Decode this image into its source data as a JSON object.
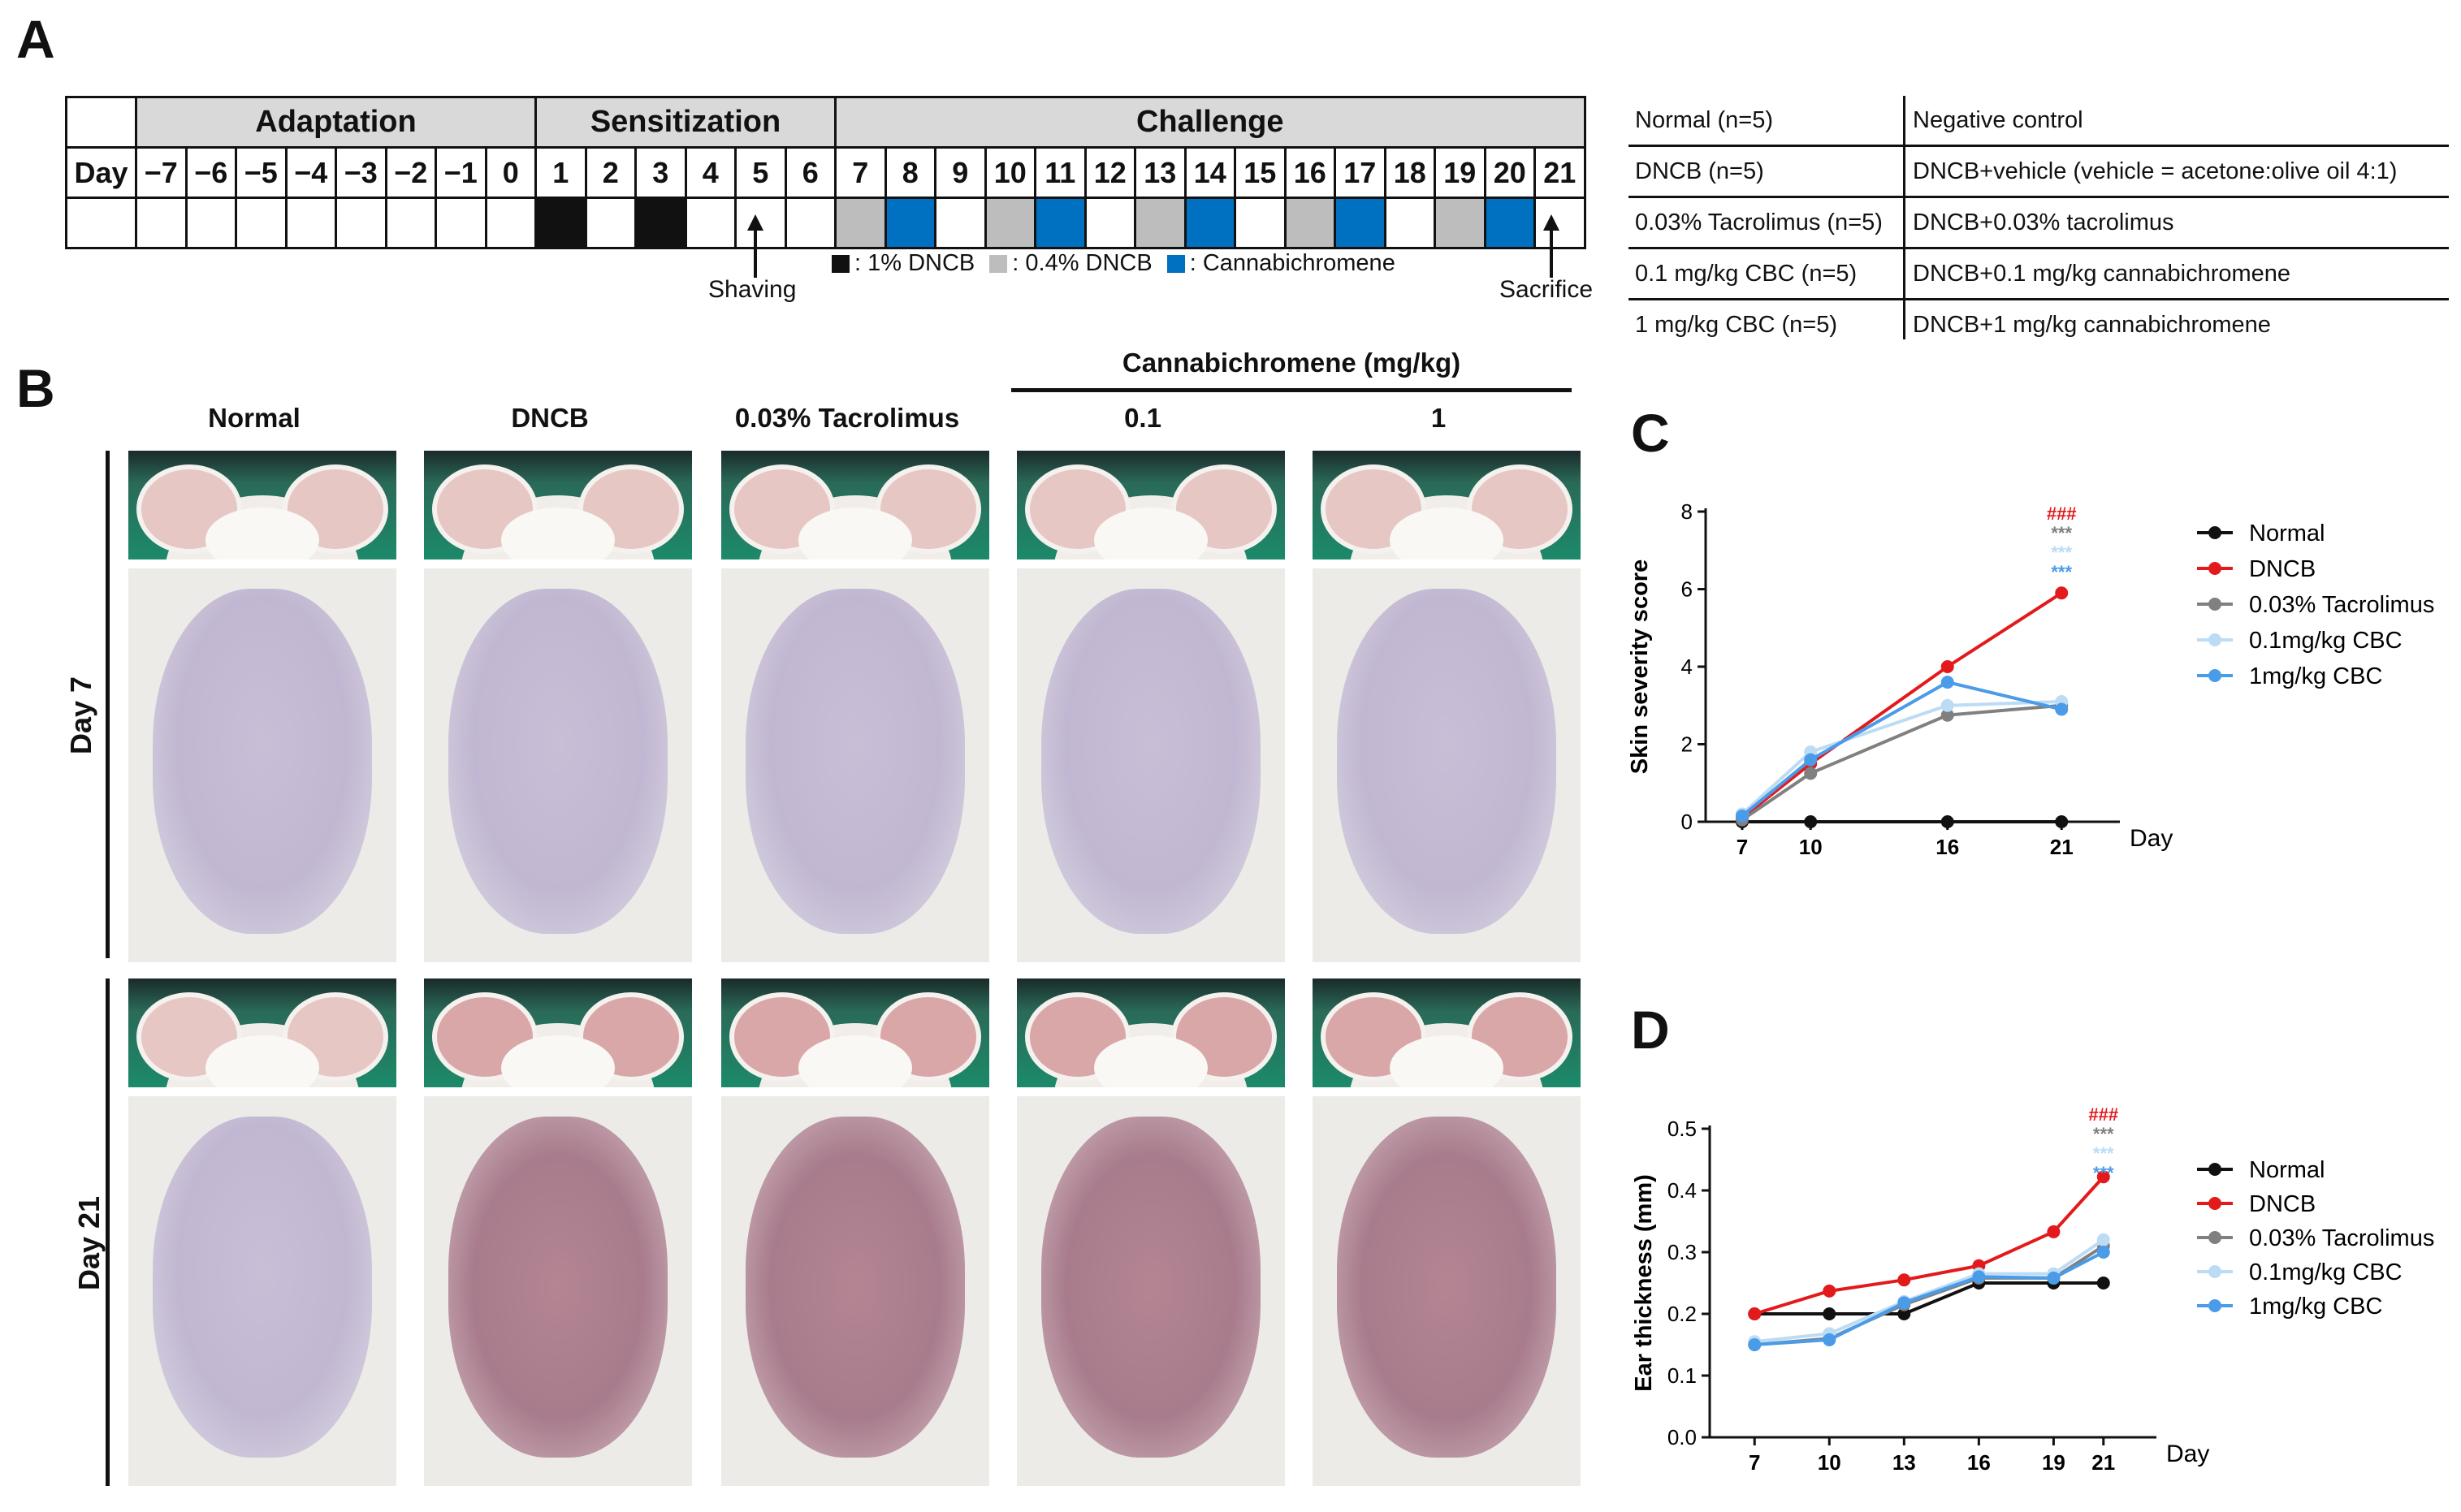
{
  "panels": {
    "a": "A",
    "b": "B",
    "c": "C",
    "d": "D"
  },
  "schedule": {
    "day_label": "Day",
    "phases": [
      "Adaptation",
      "Sensitization",
      "Challenge"
    ],
    "days": [
      "−7",
      "−6",
      "−5",
      "−4",
      "−3",
      "−2",
      "−1",
      "0",
      "1",
      "2",
      "3",
      "4",
      "5",
      "6",
      "7",
      "8",
      "9",
      "10",
      "11",
      "12",
      "13",
      "14",
      "15",
      "16",
      "17",
      "18",
      "19",
      "20",
      "21"
    ],
    "treatments": [
      "none",
      "none",
      "none",
      "none",
      "none",
      "none",
      "none",
      "none",
      "dncb1",
      "none",
      "dncb1",
      "none",
      "none",
      "none",
      "dncb04",
      "cbc",
      "none",
      "dncb04",
      "cbc",
      "none",
      "dncb04",
      "cbc",
      "none",
      "dncb04",
      "cbc",
      "none",
      "dncb04",
      "cbc",
      "none"
    ],
    "shaving": "Shaving",
    "sacrifice": "Sacrifice",
    "legend": [
      {
        "key": "dncb1",
        "label": ": 1% DNCB",
        "color": "#111111"
      },
      {
        "key": "dncb04",
        "label": ": 0.4% DNCB",
        "color": "#bdbdbd"
      },
      {
        "key": "cbc",
        "label": ": Cannabichromene",
        "color": "#0070c0"
      }
    ]
  },
  "groups": [
    {
      "name": "Normal (n=5)",
      "desc": "Negative control"
    },
    {
      "name": "DNCB (n=5)",
      "desc": "DNCB+vehicle (vehicle = acetone:olive oil 4:1)"
    },
    {
      "name": "0.03% Tacrolimus (n=5)",
      "desc": "DNCB+0.03% tacrolimus"
    },
    {
      "name": "0.1 mg/kg CBC (n=5)",
      "desc": "DNCB+0.1 mg/kg cannabichromene"
    },
    {
      "name": "1 mg/kg CBC (n=5)",
      "desc": "DNCB+1 mg/kg cannabichromene"
    }
  ],
  "photos": {
    "cbc_header": "Cannabichromene (mg/kg)",
    "columns": [
      "Normal",
      "DNCB",
      "0.03% Tacrolimus",
      "0.1",
      "1"
    ],
    "rows": [
      "Day 7",
      "Day 21"
    ]
  },
  "chart_data": [
    {
      "type": "line",
      "title": "",
      "xlabel": "Day",
      "ylabel": "Skin severity score",
      "x": [
        7,
        10,
        16,
        21
      ],
      "ylim": [
        0,
        8
      ],
      "yticks": [
        0,
        2,
        4,
        6,
        8
      ],
      "series": [
        {
          "name": "Normal",
          "color": "#111111",
          "values": [
            0,
            0,
            0,
            0
          ]
        },
        {
          "name": "DNCB",
          "color": "#e31a1c",
          "values": [
            0.1,
            1.5,
            4.0,
            5.9
          ]
        },
        {
          "name": "0.03% Tacrolimus",
          "color": "#808080",
          "values": [
            0.05,
            1.25,
            2.75,
            3.0
          ]
        },
        {
          "name": "0.1mg/kg CBC",
          "color": "#bcdcf5",
          "values": [
            0.2,
            1.8,
            3.0,
            3.1
          ]
        },
        {
          "name": "1mg/kg CBC",
          "color": "#4a9be8",
          "values": [
            0.15,
            1.6,
            3.6,
            2.9
          ]
        }
      ],
      "annotations": [
        {
          "text": "###",
          "color": "#e31a1c"
        },
        {
          "text": "***",
          "color": "#808080"
        },
        {
          "text": "***",
          "color": "#bcdcf5"
        },
        {
          "text": "***",
          "color": "#4a9be8"
        }
      ]
    },
    {
      "type": "line",
      "title": "",
      "xlabel": "Day",
      "ylabel": "Ear thickness (mm)",
      "x": [
        7,
        10,
        13,
        16,
        19,
        21
      ],
      "ylim": [
        0.0,
        0.5
      ],
      "yticks": [
        "0.0",
        "0.1",
        "0.2",
        "0.3",
        "0.4",
        "0.5"
      ],
      "series": [
        {
          "name": "Normal",
          "color": "#111111",
          "values": [
            0.2,
            0.2,
            0.2,
            0.25,
            0.25,
            0.25
          ]
        },
        {
          "name": "DNCB",
          "color": "#e31a1c",
          "values": [
            0.2,
            0.237,
            0.255,
            0.278,
            0.333,
            0.422
          ]
        },
        {
          "name": "0.03% Tacrolimus",
          "color": "#808080",
          "values": [
            0.15,
            0.16,
            0.215,
            0.258,
            0.258,
            0.31
          ]
        },
        {
          "name": "0.1mg/kg CBC",
          "color": "#bcdcf5",
          "values": [
            0.155,
            0.168,
            0.22,
            0.265,
            0.265,
            0.32
          ]
        },
        {
          "name": "1mg/kg CBC",
          "color": "#4a9be8",
          "values": [
            0.15,
            0.158,
            0.218,
            0.26,
            0.258,
            0.3
          ]
        }
      ],
      "annotations": [
        {
          "text": "###",
          "color": "#e31a1c"
        },
        {
          "text": "***",
          "color": "#808080"
        },
        {
          "text": "***",
          "color": "#bcdcf5"
        },
        {
          "text": "***",
          "color": "#4a9be8"
        }
      ]
    }
  ]
}
